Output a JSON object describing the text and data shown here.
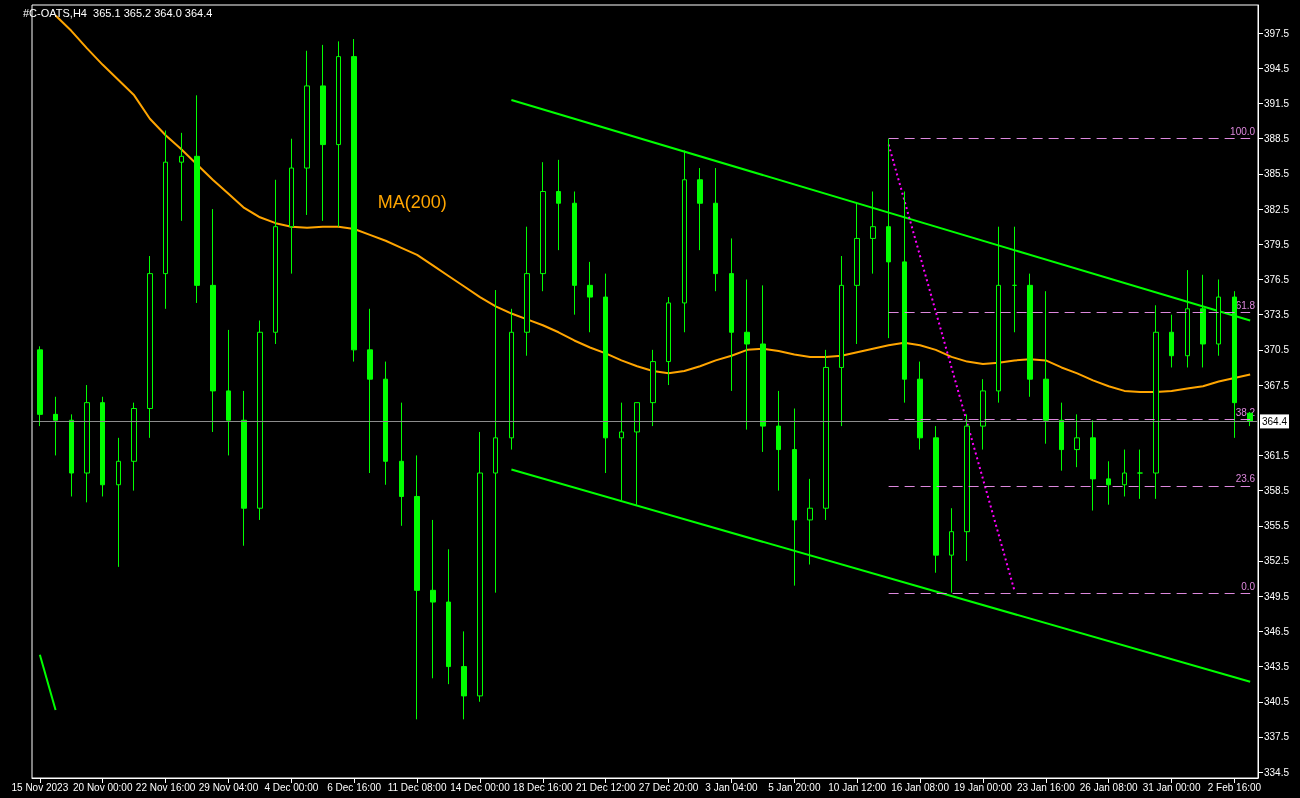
{
  "chart_data": {
    "type": "candlestick",
    "title": "#C-OATS,H4  365.1 365.2 364.0 364.4",
    "color": "#00ff00",
    "legend": false,
    "grid": false,
    "categories": [
      "15 Nov 2023",
      null,
      null,
      null,
      "20 Nov 00:00",
      null,
      null,
      null,
      "22 Nov 16:00",
      null,
      null,
      null,
      "29 Nov 04:00",
      null,
      null,
      null,
      "4 Dec 00:00",
      null,
      null,
      null,
      "6 Dec 16:00",
      null,
      null,
      null,
      "11 Dec 08:00",
      null,
      null,
      null,
      "14 Dec 00:00",
      null,
      null,
      null,
      "18 Dec 16:00",
      null,
      null,
      null,
      "21 Dec 12:00",
      null,
      null,
      null,
      "27 Dec 20:00",
      null,
      null,
      null,
      "3 Jan 04:00",
      null,
      null,
      null,
      "5 Jan 20:00",
      null,
      null,
      null,
      "10 Jan 12:00",
      null,
      null,
      null,
      "16 Jan 08:00",
      null,
      null,
      null,
      "19 Jan 00:00",
      null,
      null,
      null,
      "23 Jan 16:00",
      null,
      null,
      null,
      "26 Jan 08:00",
      null,
      null,
      null,
      "31 Jan 00:00",
      null,
      null,
      null,
      "2 Feb 16:00",
      null
    ],
    "ohlc": [
      [
        370.5,
        370.8,
        364,
        365
      ],
      [
        365,
        366.5,
        361.5,
        364.5
      ],
      [
        364.5,
        365,
        358,
        360
      ],
      [
        360,
        367.5,
        357.5,
        366
      ],
      [
        366,
        366.5,
        358,
        359
      ],
      [
        359,
        363,
        352,
        361
      ],
      [
        361,
        366,
        358.5,
        365.5
      ],
      [
        365.5,
        378.5,
        363,
        377
      ],
      [
        377,
        389.2,
        374,
        386.5
      ],
      [
        386.5,
        389,
        381.5,
        387
      ],
      [
        387,
        392.2,
        374.5,
        376
      ],
      [
        376,
        382.5,
        363.5,
        367
      ],
      [
        367,
        372.2,
        361.5,
        364.5
      ],
      [
        364.5,
        367,
        353.8,
        357
      ],
      [
        357,
        373,
        356,
        372
      ],
      [
        372,
        385,
        371,
        381
      ],
      [
        381,
        388.5,
        377,
        386
      ],
      [
        386,
        396,
        382,
        393
      ],
      [
        393,
        396.5,
        381.5,
        388
      ],
      [
        388,
        396.8,
        381,
        395.5
      ],
      [
        395.5,
        397,
        369.5,
        370.5
      ],
      [
        370.5,
        374,
        360,
        368
      ],
      [
        368,
        369.5,
        359,
        361
      ],
      [
        361,
        366,
        355.5,
        358
      ],
      [
        358,
        361.5,
        339,
        350
      ],
      [
        350,
        356,
        342.5,
        349
      ],
      [
        349,
        353.5,
        342,
        343.5
      ],
      [
        343.5,
        346.5,
        339,
        341
      ],
      [
        341,
        363.5,
        340.5,
        360
      ],
      [
        360,
        375.6,
        349.8,
        363
      ],
      [
        363,
        374,
        362,
        372
      ],
      [
        372,
        381,
        370,
        377
      ],
      [
        377,
        386.5,
        375.5,
        384
      ],
      [
        384,
        386.7,
        379,
        383
      ],
      [
        383,
        384,
        373.5,
        376
      ],
      [
        376,
        378,
        372,
        375
      ],
      [
        375,
        377,
        360,
        363
      ],
      [
        363,
        366,
        357.7,
        363.5
      ],
      [
        363.5,
        366,
        357.3,
        366
      ],
      [
        366,
        370.5,
        364,
        369.5
      ],
      [
        369.5,
        375,
        367.5,
        374.5
      ],
      [
        374.5,
        387.5,
        372,
        385
      ],
      [
        385,
        386,
        379,
        383
      ],
      [
        383,
        386,
        375.5,
        377
      ],
      [
        377,
        380,
        367,
        372
      ],
      [
        372,
        376.5,
        363.7,
        371
      ],
      [
        371,
        376,
        361.8,
        364
      ],
      [
        364,
        367,
        358.5,
        362
      ],
      [
        362,
        365.5,
        350.4,
        356
      ],
      [
        356,
        359.5,
        352.2,
        357
      ],
      [
        357,
        370.5,
        356,
        369
      ],
      [
        369,
        378.5,
        364,
        376
      ],
      [
        376,
        383,
        371,
        380
      ],
      [
        380,
        384,
        377,
        381
      ],
      [
        381,
        388.5,
        371.5,
        378
      ],
      [
        378,
        384,
        366,
        368
      ],
      [
        368,
        369.5,
        362,
        363
      ],
      [
        363,
        364,
        351.5,
        353
      ],
      [
        353,
        357,
        349.8,
        355
      ],
      [
        355,
        365,
        352.5,
        364
      ],
      [
        364,
        368,
        362,
        367
      ],
      [
        367,
        381,
        366,
        376
      ],
      [
        376,
        381,
        372,
        376
      ],
      [
        376,
        377,
        366.5,
        368
      ],
      [
        368,
        375.5,
        362.5,
        364.5
      ],
      [
        364.5,
        366,
        360.2,
        362
      ],
      [
        362,
        365,
        360.5,
        363
      ],
      [
        363,
        364.5,
        356.8,
        359.5
      ],
      [
        359.5,
        361,
        357.3,
        359
      ],
      [
        359,
        362,
        358,
        360
      ],
      [
        360,
        362,
        357.8,
        360
      ],
      [
        360,
        374.3,
        357.8,
        372
      ],
      [
        372,
        373.5,
        369,
        370
      ],
      [
        370,
        377.3,
        369,
        374
      ],
      [
        374,
        376.9,
        369,
        371
      ],
      [
        371,
        376.5,
        370,
        375
      ],
      [
        375,
        375.5,
        363,
        366
      ],
      [
        365.1,
        365.2,
        364.0,
        364.4
      ]
    ],
    "series": [
      {
        "name": "MA(200)",
        "type": "line",
        "color": "#ffa500",
        "values": [
          null,
          399.0,
          397.7,
          396.2,
          394.8,
          393.5,
          392.2,
          390.2,
          388.8,
          387.6,
          386.3,
          385.0,
          383.8,
          382.6,
          381.8,
          381.3,
          381.0,
          380.9,
          381.0,
          381.0,
          380.8,
          380.3,
          379.8,
          379.2,
          378.6,
          377.7,
          376.8,
          375.9,
          375.0,
          374.2,
          373.6,
          373.1,
          372.6,
          372.0,
          371.3,
          370.7,
          370.2,
          369.6,
          369.1,
          368.7,
          368.5,
          368.7,
          369.1,
          369.6,
          370.0,
          370.5,
          370.6,
          370.4,
          370.1,
          369.9,
          369.9,
          370.0,
          370.3,
          370.6,
          370.9,
          371.1,
          370.9,
          370.5,
          369.9,
          369.5,
          369.3,
          369.4,
          369.6,
          369.7,
          369.6,
          369.0,
          368.5,
          367.9,
          367.4,
          367.0,
          366.9,
          366.9,
          367.0,
          367.2,
          367.4,
          367.8,
          368.1,
          368.4
        ]
      },
      {
        "type": "line",
        "color": "#00ff00",
        "values": [
          344.5,
          339.8,
          null,
          null,
          null,
          null,
          null,
          null,
          null,
          null,
          null,
          null,
          null,
          null,
          null,
          null,
          null,
          null,
          null,
          null,
          null,
          null,
          null,
          null,
          null,
          null,
          null,
          null,
          null,
          null,
          null,
          null,
          null,
          null,
          null,
          null,
          null,
          null,
          null,
          null,
          null,
          null,
          null,
          null,
          null,
          null,
          null,
          null,
          null,
          null,
          null,
          null,
          null,
          null,
          null,
          null,
          null,
          null,
          null,
          null,
          null,
          null,
          null,
          null,
          null,
          null,
          null,
          null,
          null,
          null,
          null,
          null,
          null,
          null,
          null,
          null,
          null,
          null
        ]
      },
      {
        "type": "line",
        "color": "#00ff00",
        "values": [
          null,
          null,
          null,
          null,
          null,
          null,
          null,
          null,
          null,
          null,
          null,
          null,
          null,
          null,
          null,
          null,
          null,
          null,
          null,
          null,
          null,
          null,
          null,
          null,
          null,
          null,
          null,
          null,
          null,
          null,
          391.8,
          null,
          null,
          null,
          null,
          null,
          null,
          null,
          null,
          null,
          null,
          null,
          null,
          null,
          null,
          null,
          null,
          null,
          null,
          null,
          null,
          null,
          null,
          null,
          null,
          null,
          null,
          null,
          null,
          null,
          null,
          null,
          null,
          null,
          null,
          null,
          null,
          null,
          null,
          null,
          null,
          null,
          null,
          null,
          null,
          null,
          null,
          373.0
        ]
      },
      {
        "type": "line",
        "color": "#00ff00",
        "values": [
          null,
          null,
          null,
          null,
          null,
          null,
          null,
          null,
          null,
          null,
          null,
          null,
          null,
          null,
          null,
          null,
          null,
          null,
          null,
          null,
          null,
          null,
          null,
          null,
          null,
          null,
          null,
          null,
          null,
          null,
          360.3,
          null,
          null,
          null,
          null,
          null,
          null,
          null,
          null,
          null,
          null,
          null,
          null,
          null,
          null,
          null,
          null,
          null,
          null,
          null,
          null,
          null,
          null,
          null,
          null,
          null,
          null,
          null,
          null,
          null,
          null,
          null,
          null,
          null,
          null,
          null,
          null,
          null,
          null,
          null,
          null,
          null,
          null,
          null,
          null,
          null,
          null,
          342.2
        ]
      },
      {
        "type": "line",
        "color": "#ff00ff",
        "line_style": "dotted",
        "values": [
          null,
          null,
          null,
          null,
          null,
          null,
          null,
          null,
          null,
          null,
          null,
          null,
          null,
          null,
          null,
          null,
          null,
          null,
          null,
          null,
          null,
          null,
          null,
          null,
          null,
          null,
          null,
          null,
          null,
          null,
          null,
          null,
          null,
          null,
          null,
          null,
          null,
          null,
          null,
          null,
          null,
          null,
          null,
          null,
          null,
          null,
          null,
          null,
          null,
          null,
          null,
          null,
          null,
          null,
          388.0,
          null,
          null,
          null,
          null,
          null,
          null,
          null,
          350.0,
          null,
          null,
          null,
          null,
          null,
          null,
          null,
          null,
          null,
          null,
          null,
          null,
          null,
          null,
          null
        ]
      }
    ],
    "ref_lines": [
      {
        "axis": "y",
        "value": 388.55,
        "color": "#dd88dd",
        "line_style": "dashed"
      },
      {
        "axis": "y",
        "value": 373.7,
        "color": "#dd88dd",
        "line_style": "dashed"
      },
      {
        "axis": "y",
        "value": 364.6,
        "color": "#dd88dd",
        "line_style": "dashed"
      },
      {
        "axis": "y",
        "value": 358.9,
        "color": "#dd88dd",
        "line_style": "dashed"
      },
      {
        "axis": "y",
        "value": 349.76,
        "color": "#dd88dd",
        "line_style": "dashed"
      },
      {
        "axis": "y",
        "value": 364.4,
        "label": "364.4",
        "color": "#8c8c8c",
        "line_style": "solid"
      }
    ],
    "annotations": [
      {
        "text": "100.0",
        "y": 388.55
      },
      {
        "text": "61.8",
        "y": 373.7
      },
      {
        "text": "38.2",
        "y": 364.6
      },
      {
        "text": "23.6",
        "y": 358.9
      },
      {
        "text": "0.0",
        "y": 349.76
      }
    ],
    "ylim": [
      334.0,
      399.9
    ],
    "yticks": [
      334.5,
      337.5,
      340.5,
      343.5,
      346.5,
      349.5,
      352.5,
      355.5,
      358.5,
      361.5,
      367.5,
      370.5,
      373.5,
      376.5,
      379.5,
      382.5,
      385.5,
      388.5,
      391.5,
      394.5,
      397.5
    ]
  }
}
